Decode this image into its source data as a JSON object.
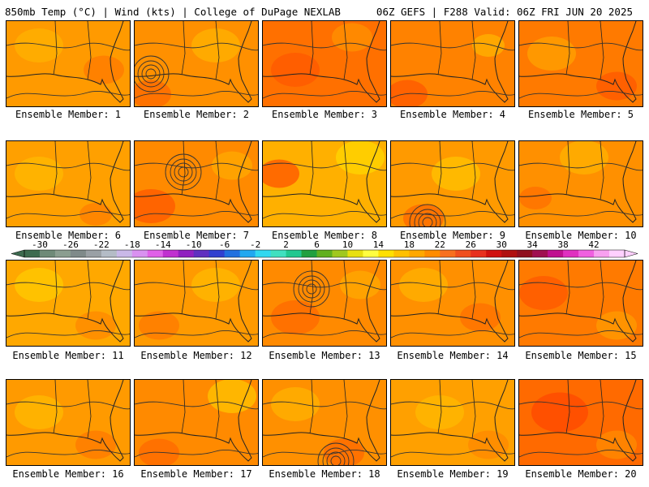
{
  "header": {
    "left": "850mb Temp (°C) | Wind (kts) | College of DuPage NEXLAB",
    "right": "06Z GEFS | F288 Valid: 06Z FRI JUN 20 2025"
  },
  "members": [
    {
      "label": "Ensemble Member: 1"
    },
    {
      "label": "Ensemble Member: 2"
    },
    {
      "label": "Ensemble Member: 3"
    },
    {
      "label": "Ensemble Member: 4"
    },
    {
      "label": "Ensemble Member: 5"
    },
    {
      "label": "Ensemble Member: 6"
    },
    {
      "label": "Ensemble Member: 7"
    },
    {
      "label": "Ensemble Member: 8"
    },
    {
      "label": "Ensemble Member: 9"
    },
    {
      "label": "Ensemble Member: 10"
    },
    {
      "label": "Ensemble Member: 11"
    },
    {
      "label": "Ensemble Member: 12"
    },
    {
      "label": "Ensemble Member: 13"
    },
    {
      "label": "Ensemble Member: 14"
    },
    {
      "label": "Ensemble Member: 15"
    },
    {
      "label": "Ensemble Member: 16"
    },
    {
      "label": "Ensemble Member: 17"
    },
    {
      "label": "Ensemble Member: 18"
    },
    {
      "label": "Ensemble Member: 19"
    },
    {
      "label": "Ensemble Member: 20"
    }
  ],
  "colorbar": {
    "labels": [
      "-30",
      "-26",
      "-22",
      "-18",
      "-14",
      "-10",
      "-6",
      "-2",
      "2",
      "6",
      "10",
      "14",
      "18",
      "22",
      "26",
      "30",
      "34",
      "38",
      "42"
    ],
    "colors": [
      "#3d6b4f",
      "#6f8a78",
      "#8b9e90",
      "#7f8a8a",
      "#9aa0a5",
      "#b4bcc6",
      "#c9b8e8",
      "#d991f0",
      "#e060e8",
      "#c030d0",
      "#9020c0",
      "#6030c0",
      "#3040d0",
      "#2070e0",
      "#20a8f0",
      "#30d8f0",
      "#40e0c0",
      "#20c890",
      "#20a040",
      "#60b020",
      "#a0c820",
      "#e8e010",
      "#ffff40",
      "#ffe000",
      "#ffc000",
      "#ffa800",
      "#ff8c00",
      "#f87020",
      "#f05020",
      "#e83020",
      "#d01010",
      "#b01010",
      "#901020",
      "#a01050",
      "#c01090",
      "#e030c0",
      "#f060e0",
      "#f8a0f0",
      "#ffd0ff"
    ]
  }
}
